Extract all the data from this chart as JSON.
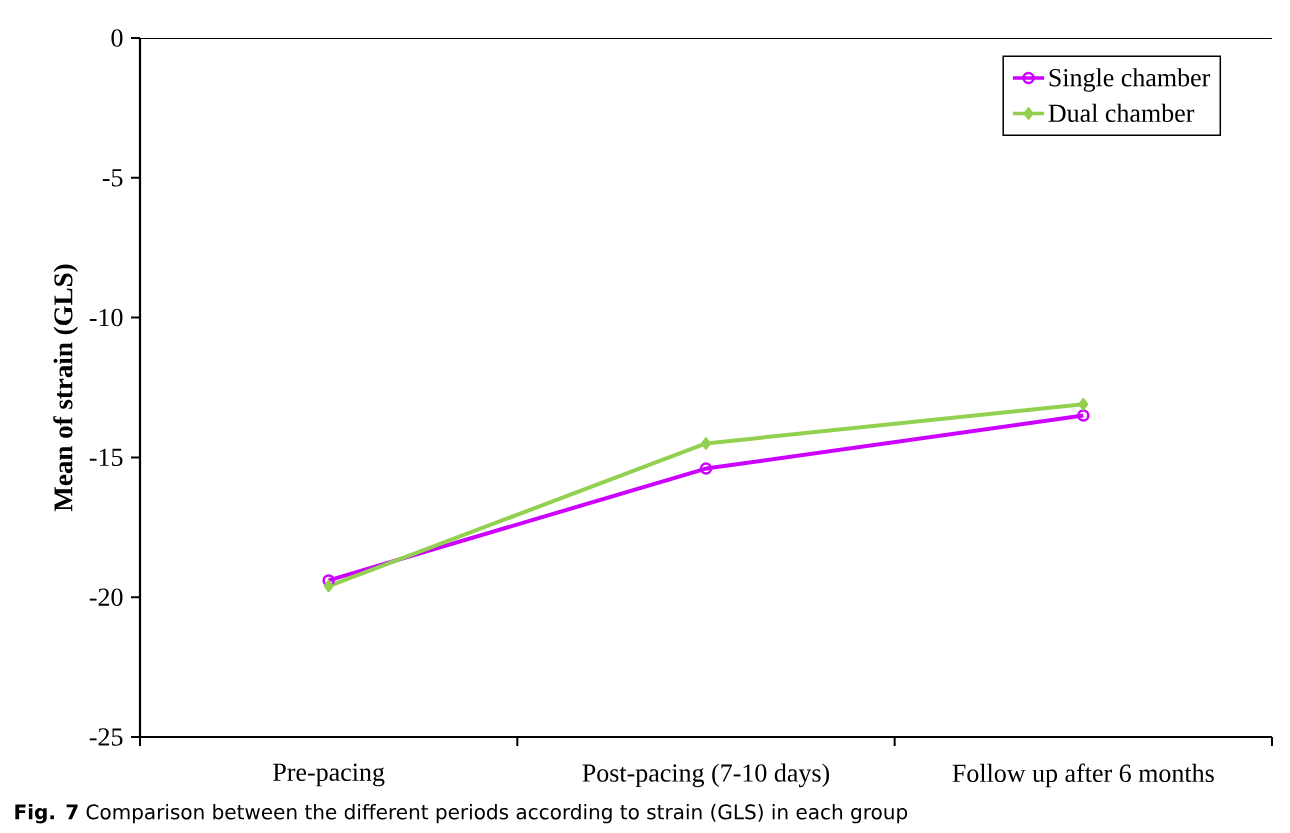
{
  "chart_data": {
    "type": "line",
    "categories": [
      "Pre-pacing",
      "Post-pacing (7-10 days)",
      "Follow up after 6 months"
    ],
    "series": [
      {
        "name": "Single chamber",
        "color": "#cc00ff",
        "marker": "circle",
        "values": [
          -19.4,
          -15.4,
          -13.5
        ]
      },
      {
        "name": "Dual chamber",
        "color": "#92d050",
        "marker": "diamond",
        "values": [
          -19.6,
          -14.5,
          -13.1
        ]
      }
    ],
    "ylabel": "Mean of strain (GLS)",
    "ylim": [
      -25,
      0
    ],
    "yticks": [
      -25,
      -20,
      -15,
      -10,
      -5,
      0
    ],
    "legend": "top right",
    "grid": false,
    "line_style": "solid",
    "annotations": [
      "**Fig. 7** Comparison between the different periods according to strain (GLS) in each group"
    ]
  }
}
